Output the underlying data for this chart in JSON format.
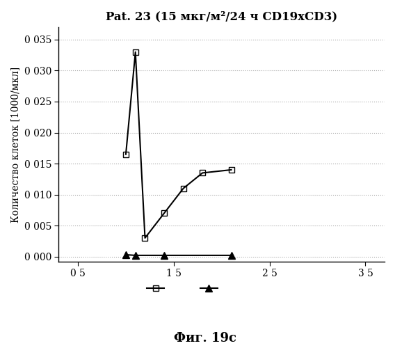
{
  "title": "Pat. 23 (15 мкг/м²/24 ч CD19xCD3)",
  "xlabel_bottom": "Фиг. 19с",
  "ylabel": "Количество клеток [1000/мкл]",
  "xlim": [
    3,
    37
  ],
  "ylim": [
    -0.0008,
    0.037
  ],
  "xticks": [
    5,
    15,
    25,
    35
  ],
  "xtick_labels": [
    "0 5",
    "1 5",
    "2 5",
    "3 5"
  ],
  "yticks": [
    0.0,
    0.005,
    0.01,
    0.015,
    0.02,
    0.025,
    0.03,
    0.035
  ],
  "ytick_labels": [
    "0 000",
    "0 005",
    "0 010",
    "0 015",
    "0 020",
    "0 025",
    "0 030",
    "0 035"
  ],
  "series_square": {
    "x": [
      10,
      11,
      12,
      14,
      16,
      18,
      21
    ],
    "y": [
      0.0165,
      0.033,
      0.003,
      0.007,
      0.011,
      0.0135,
      0.014
    ],
    "color": "black",
    "marker": "s",
    "fillstyle": "none",
    "linestyle": "-",
    "linewidth": 1.5,
    "markersize": 6
  },
  "series_triangle": {
    "x": [
      10,
      11,
      14,
      21
    ],
    "y": [
      0.0003,
      0.0002,
      0.0002,
      0.0002
    ],
    "color": "black",
    "marker": "^",
    "fillstyle": "full",
    "linestyle": "-",
    "linewidth": 1.5,
    "markersize": 7
  },
  "background_color": "#ffffff",
  "grid_color": "#aaaaaa",
  "title_fontsize": 12,
  "axis_fontsize": 10,
  "tick_fontsize": 10
}
